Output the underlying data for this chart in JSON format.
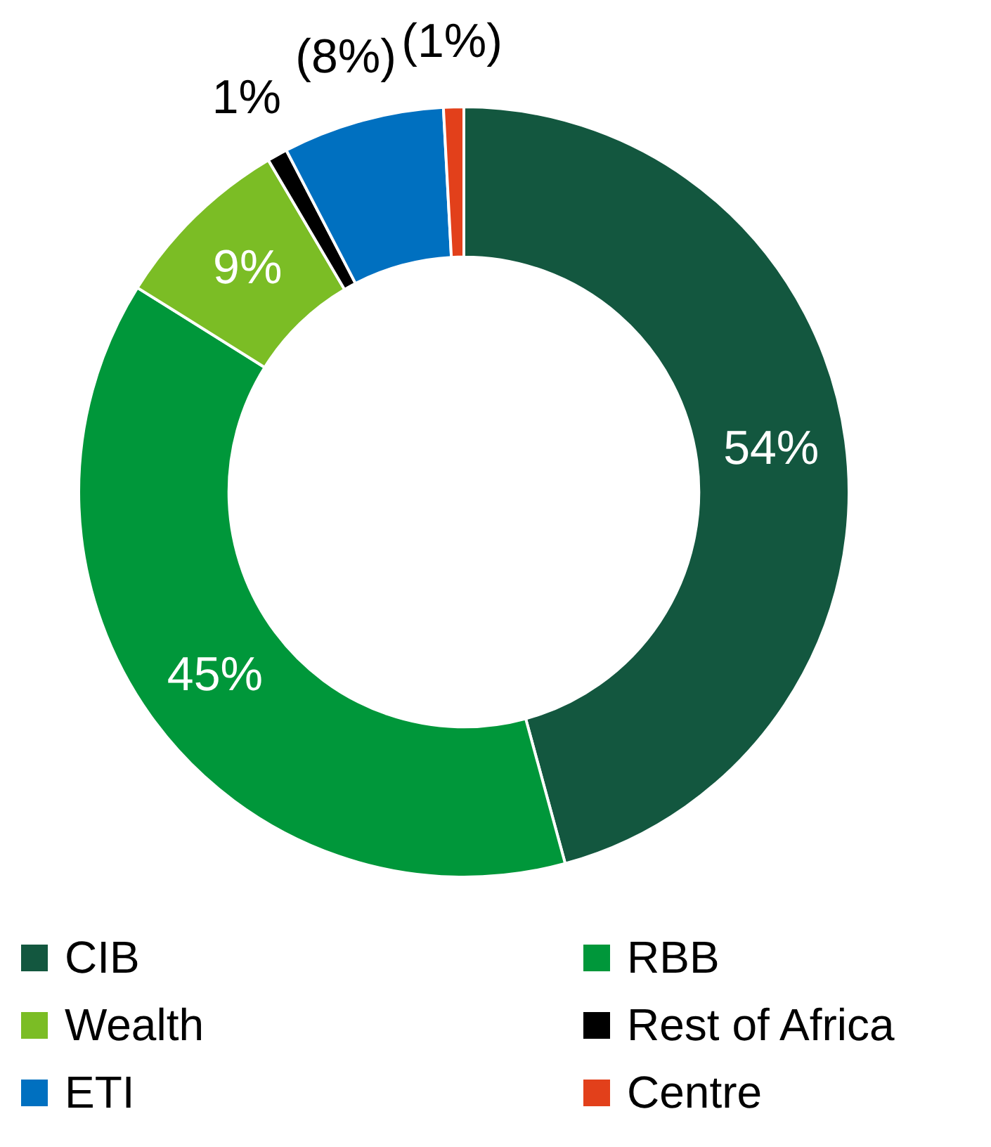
{
  "chart_data": {
    "type": "donut",
    "categories": [
      "CIB",
      "RBB",
      "Wealth",
      "Rest of Africa",
      "ETI",
      "Centre"
    ],
    "values": [
      54,
      45,
      9,
      1,
      8,
      1
    ],
    "value_labels": [
      "54%",
      "45%",
      "9%",
      "1%",
      "(8%)",
      "(1%)"
    ],
    "colors": [
      "#13573f",
      "#00973a",
      "#7bbd25",
      "#000000",
      "#0070c0",
      "#e2401b"
    ],
    "legend": "bottom"
  }
}
